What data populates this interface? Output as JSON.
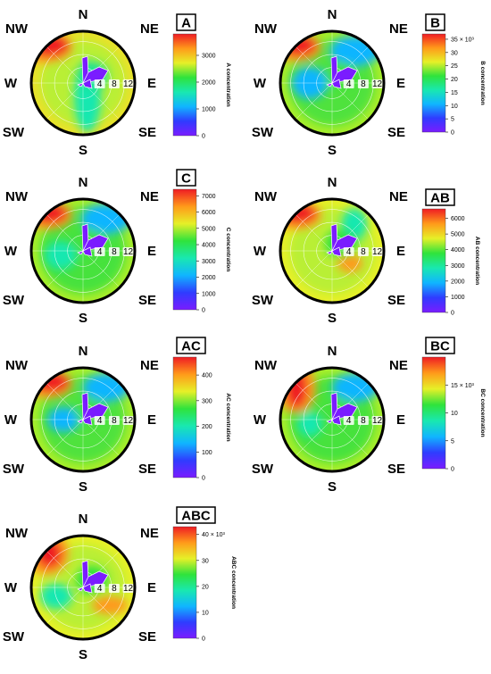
{
  "compass": [
    "N",
    "NE",
    "E",
    "SE",
    "S",
    "SW",
    "W",
    "NW"
  ],
  "ring_labels": [
    "4",
    "8",
    "12"
  ],
  "colormap": [
    "#7a1cff",
    "#2f3cff",
    "#10b5ff",
    "#19e8b0",
    "#2fe33c",
    "#e6f028",
    "#ff9a1a",
    "#ef1c24"
  ],
  "chart_data": [
    {
      "type": "heatmap",
      "subtype": "polar-plot",
      "panel": "A",
      "colorbar": {
        "title": "A concentration",
        "ticks": [
          "0",
          "1000",
          "2000",
          "3000"
        ],
        "range": [
          0,
          3800
        ]
      },
      "radial_ticks": [
        "4",
        "8",
        "12"
      ],
      "hotspots": [
        {
          "direction": "NW",
          "level": "high"
        }
      ],
      "background_level": "mid-high (yellow-green)"
    },
    {
      "type": "heatmap",
      "subtype": "polar-plot",
      "panel": "B",
      "colorbar": {
        "title": "B concentration",
        "ticks": [
          "0",
          "5",
          "10",
          "15",
          "20",
          "25",
          "30",
          "35 × 10³"
        ],
        "range": [
          0,
          37
        ]
      },
      "radial_ticks": [
        "4",
        "8",
        "12"
      ],
      "hotspots": [
        {
          "direction": "NW",
          "level": "high"
        },
        {
          "direction": "NE",
          "level": "low"
        }
      ],
      "background_level": "mid (green)"
    },
    {
      "type": "heatmap",
      "subtype": "polar-plot",
      "panel": "C",
      "colorbar": {
        "title": "C concentration",
        "ticks": [
          "0",
          "1000",
          "2000",
          "3000",
          "4000",
          "5000",
          "6000",
          "7000"
        ],
        "range": [
          0,
          7400
        ]
      },
      "radial_ticks": [
        "4",
        "8",
        "12"
      ],
      "hotspots": [
        {
          "direction": "NW",
          "level": "high"
        },
        {
          "direction": "NE",
          "level": "low"
        }
      ],
      "background_level": "mid (green)"
    },
    {
      "type": "heatmap",
      "subtype": "polar-plot",
      "panel": "AB",
      "colorbar": {
        "title": "AB concentration",
        "ticks": [
          "0",
          "1000",
          "2000",
          "3000",
          "4000",
          "5000",
          "6000"
        ],
        "range": [
          0,
          6600
        ]
      },
      "radial_ticks": [
        "4",
        "8",
        "12"
      ],
      "hotspots": [
        {
          "direction": "NW",
          "level": "high"
        },
        {
          "direction": "SE",
          "level": "mid-high"
        }
      ],
      "background_level": "mid (yellow-green)"
    },
    {
      "type": "heatmap",
      "subtype": "polar-plot",
      "panel": "AC",
      "colorbar": {
        "title": "AC concentration",
        "ticks": [
          "0",
          "100",
          "200",
          "300",
          "400"
        ],
        "range": [
          0,
          470
        ]
      },
      "radial_ticks": [
        "4",
        "8",
        "12"
      ],
      "hotspots": [
        {
          "direction": "NW",
          "level": "high"
        },
        {
          "direction": "NE",
          "level": "low"
        }
      ],
      "background_level": "mid (green)"
    },
    {
      "type": "heatmap",
      "subtype": "polar-plot",
      "panel": "BC",
      "colorbar": {
        "title": "BC concentration",
        "ticks": [
          "0",
          "5",
          "10",
          "15 × 10³"
        ],
        "range": [
          0,
          20
        ]
      },
      "radial_ticks": [
        "4",
        "8",
        "12"
      ],
      "hotspots": [
        {
          "direction": "NW",
          "level": "high"
        },
        {
          "direction": "NE",
          "level": "low"
        }
      ],
      "background_level": "mid (green)"
    },
    {
      "type": "heatmap",
      "subtype": "polar-plot",
      "panel": "ABC",
      "colorbar": {
        "title": "ABC concentration",
        "ticks": [
          "0",
          "10",
          "20",
          "30",
          "40 × 10³"
        ],
        "range": [
          0,
          43
        ]
      },
      "radial_ticks": [
        "4",
        "8",
        "12"
      ],
      "hotspots": [
        {
          "direction": "NW",
          "level": "high"
        },
        {
          "direction": "SE",
          "level": "mid-high"
        }
      ],
      "background_level": "mid (yellow-green)"
    }
  ]
}
